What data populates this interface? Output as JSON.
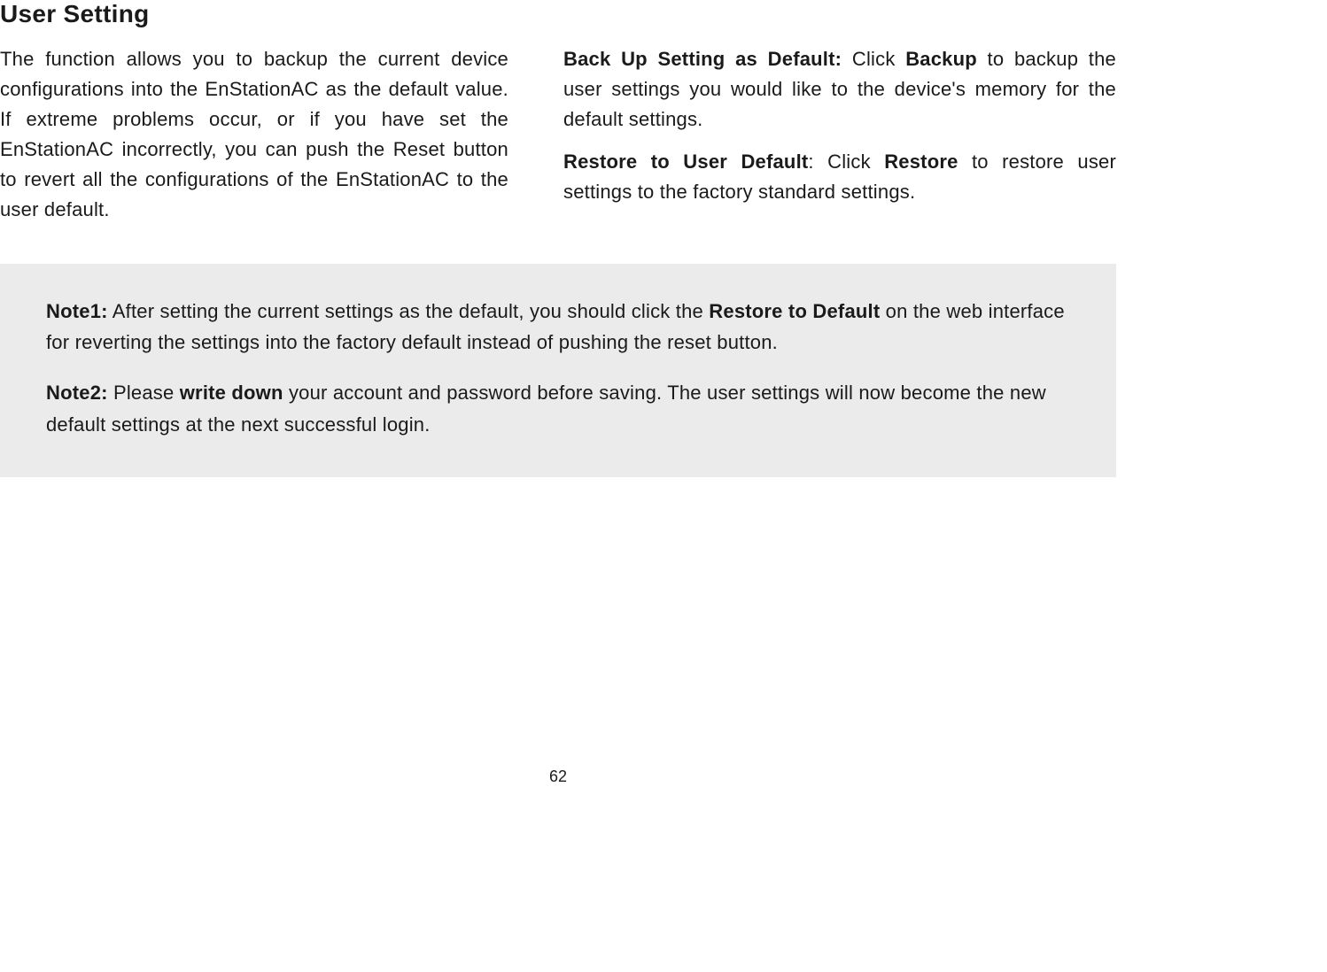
{
  "heading": "User Setting",
  "left_paragraph": "The function allows you to backup the current device configurations into the EnStationAC as the default value. If extreme problems occur, or if you have set the EnStationAC incorrectly, you can push the Reset button to revert all the configurations of the EnStationAC to the user default.",
  "right": {
    "p1_lead_bold": "Back Up Setting as Default:",
    "p1_mid": "  Click ",
    "p1_bold2": "Backup",
    "p1_tail": " to backup the user settings you would like to the device's memory for the default settings.",
    "p2_lead_bold": "Restore to User Default",
    "p2_mid": ": Click ",
    "p2_bold2": "Restore",
    "p2_tail": " to restore user settings to the factory standard settings."
  },
  "notes": {
    "n1_label": "Note1:",
    "n1_a": " After setting the current settings as the default, you should click the ",
    "n1_bold": "Restore to Default",
    "n1_b": " on the web interface for reverting the settings into the factory default instead of pushing the reset button.",
    "n2_label": "Note2:",
    "n2_a": " Please ",
    "n2_bold": "write down",
    "n2_b": " your account and password before saving. The user settings will now become the new default settings at the next successful login."
  },
  "page_number": "62",
  "colors": {
    "text": "#1a1a1a",
    "note_bg": "#ebebeb",
    "page_bg": "#ffffff"
  },
  "typography": {
    "heading_fontsize": 28,
    "body_fontsize": 22,
    "page_num_fontsize": 18,
    "line_height": 1.55
  }
}
